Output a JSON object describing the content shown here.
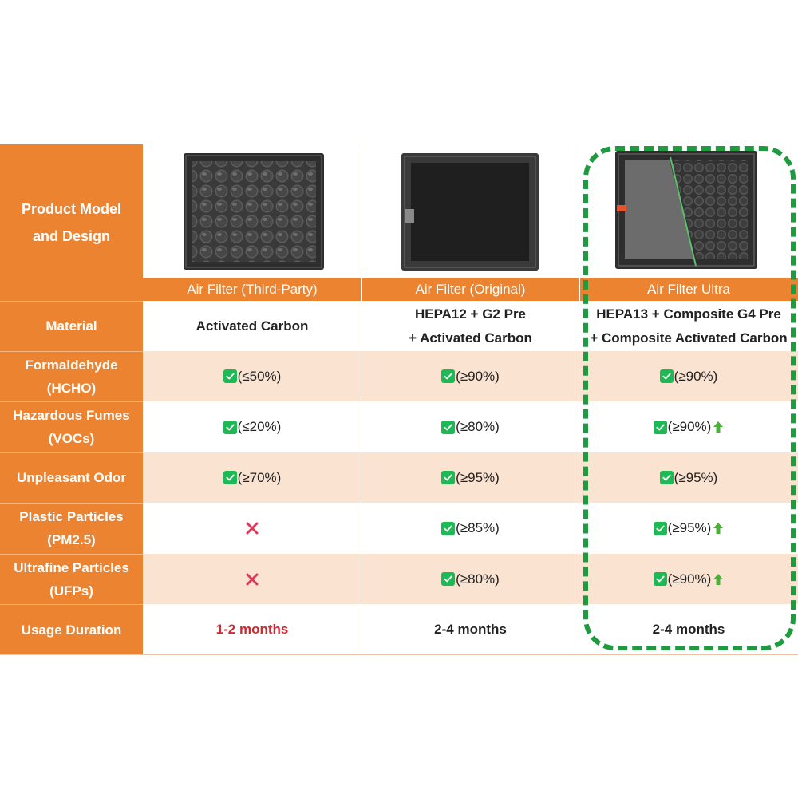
{
  "row_labels": {
    "product": [
      "Product Model",
      "and Design"
    ],
    "material": [
      "Material"
    ],
    "formaldehyde": [
      "Formaldehyde",
      "(HCHO)"
    ],
    "fumes": [
      "Hazardous Fumes",
      "(VOCs)"
    ],
    "odor": [
      "Unpleasant Odor"
    ],
    "plastic": [
      "Plastic Particles",
      "(PM2.5)"
    ],
    "ultrafine": [
      "Ultrafine Particles",
      "(UFPs)"
    ],
    "usage": [
      "Usage Duration"
    ]
  },
  "columns": [
    {
      "name": "Air Filter (Third-Party)",
      "image": "activated-carbon-honeycomb-filter",
      "material": [
        "Activated Carbon"
      ],
      "formaldehyde": "(≤50%)",
      "fumes": "(≤20%)",
      "odor": "(≥70%)",
      "plastic": "",
      "ultrafine": "",
      "usage": "1-2 months"
    },
    {
      "name": "Air Filter (Original)",
      "image": "hepa-filter",
      "material": [
        "HEPA12 + G2 Pre",
        "+ Activated Carbon"
      ],
      "formaldehyde": "(≥90%)",
      "fumes": "(≥80%)",
      "odor": "(≥95%)",
      "plastic": "(≥85%)",
      "ultrafine": "(≥80%)",
      "usage": "2-4 months"
    },
    {
      "name": "Air Filter Ultra",
      "image": "composite-hepa-carbon-filter",
      "material": [
        "HEPA13 + Composite G4 Pre",
        "+ Composite Activated Carbon"
      ],
      "formaldehyde": "(≥90%)",
      "fumes": "(≥90%)",
      "odor": "(≥95%)",
      "plastic": "(≥95%)",
      "ultrafine": "(≥90%)",
      "usage": "2-4 months"
    }
  ],
  "icons": {
    "check": "check-icon",
    "cross": "cross-icon",
    "up": "up-arrow-icon"
  },
  "colors": {
    "accent_orange": "#ec8330",
    "row_tint": "#fbe3d2",
    "check_green": "#1db954",
    "cross_red": "#e0385a",
    "highlight_green": "#1e9a3f",
    "usage_red": "#d0282e"
  }
}
